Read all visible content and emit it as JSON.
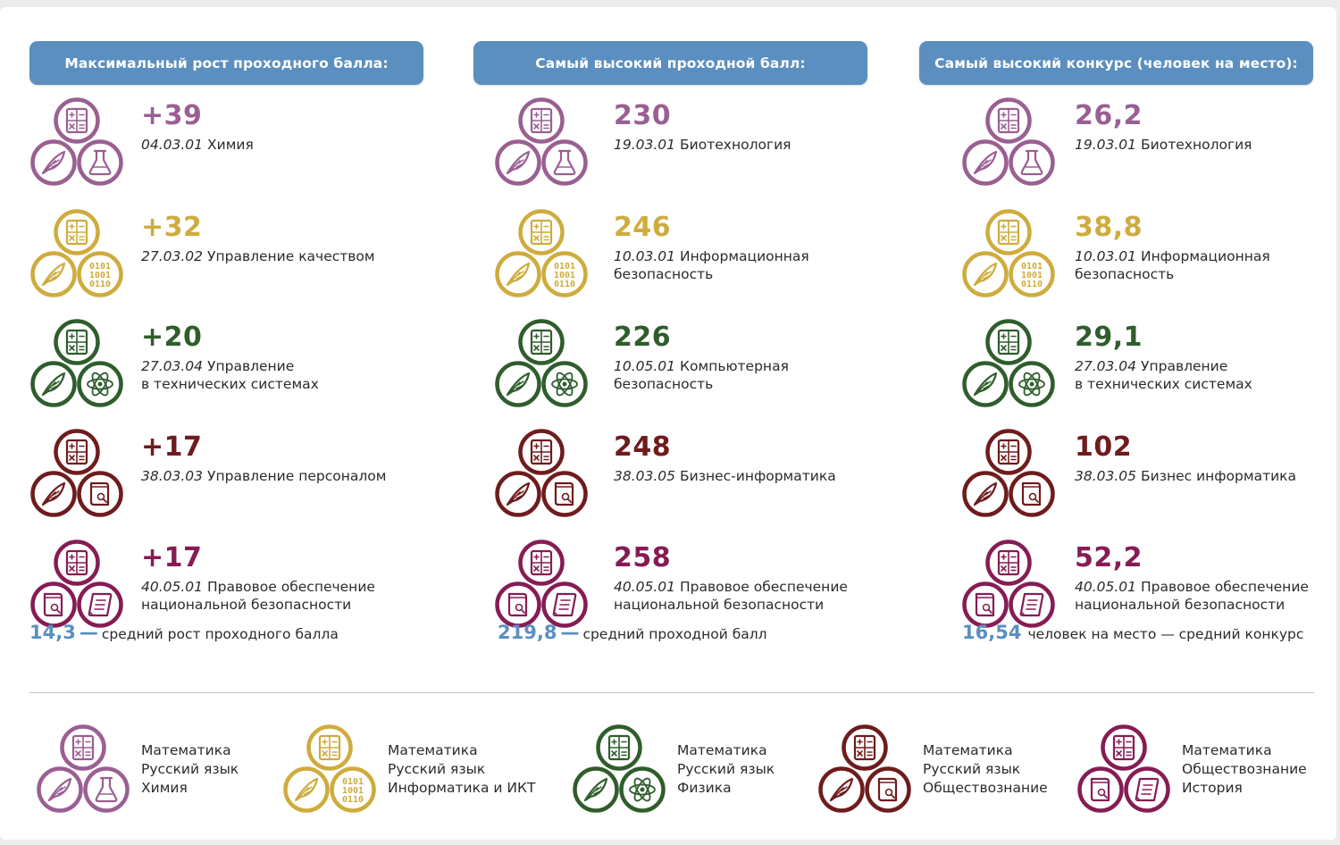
{
  "colors": {
    "header_bg": "#5b8fbf",
    "accent": "#5b8fbf",
    "chem": "#9a5f93",
    "it": "#ceac3d",
    "phys": "#2f5d2c",
    "soc": "#6e1c1d",
    "law": "#861c54"
  },
  "columns": [
    {
      "header": "Максимальный рост проходного балла:",
      "items": [
        {
          "value": "+39",
          "code": "04.03.01",
          "name": "Химия",
          "color": "chem",
          "icons": [
            "formula-icon",
            "quill-icon",
            "flask-icon"
          ]
        },
        {
          "value": "+32",
          "code": "27.03.02",
          "name": "Управление качеством",
          "color": "it",
          "icons": [
            "formula-icon",
            "quill-icon",
            "binary-icon"
          ]
        },
        {
          "value": "+20",
          "code": "27.03.04",
          "name": "Управление\nв технических системах",
          "color": "phys",
          "icons": [
            "formula-icon",
            "quill-icon",
            "atom-icon"
          ]
        },
        {
          "value": "+17",
          "code": "38.03.03",
          "name": "Управление персоналом",
          "color": "soc",
          "icons": [
            "formula-icon",
            "quill-icon",
            "book-search-icon"
          ]
        },
        {
          "value": "+17",
          "code": "40.05.01",
          "name": "Правовое обеспечение\nнациональной безопасности",
          "color": "law",
          "icons": [
            "formula-icon",
            "book-search-icon",
            "scroll-icon"
          ]
        }
      ],
      "avg": {
        "num": "14,3",
        "dash": "—",
        "label": "средний рост проходного балла"
      }
    },
    {
      "header": "Самый высокий проходной балл:",
      "items": [
        {
          "value": "230",
          "code": "19.03.01",
          "name": "Биотехнология",
          "color": "chem",
          "icons": [
            "formula-icon",
            "quill-icon",
            "flask-icon"
          ]
        },
        {
          "value": "246",
          "code": "10.03.01",
          "name": "Информационная\nбезопасность",
          "color": "it",
          "icons": [
            "formula-icon",
            "quill-icon",
            "binary-icon"
          ]
        },
        {
          "value": "226",
          "code": "10.05.01",
          "name": "Компьютерная\nбезопасность",
          "color": "phys",
          "icons": [
            "formula-icon",
            "quill-icon",
            "atom-icon"
          ]
        },
        {
          "value": "248",
          "code": "38.03.05",
          "name": "Бизнес-информатика",
          "color": "soc",
          "icons": [
            "formula-icon",
            "quill-icon",
            "book-search-icon"
          ]
        },
        {
          "value": "258",
          "code": "40.05.01",
          "name": "Правовое обеспечение\nнациональной безопасности",
          "color": "law",
          "icons": [
            "formula-icon",
            "book-search-icon",
            "scroll-icon"
          ]
        }
      ],
      "avg": {
        "num": "219,8",
        "dash": "—",
        "label": "средний проходной балл"
      }
    },
    {
      "header": "Самый высокий конкурс (человек на место):",
      "items": [
        {
          "value": "26,2",
          "code": "19.03.01",
          "name": "Биотехнология",
          "color": "chem",
          "icons": [
            "formula-icon",
            "quill-icon",
            "flask-icon"
          ]
        },
        {
          "value": "38,8",
          "code": "10.03.01",
          "name": "Информационная\nбезопасность",
          "color": "it",
          "icons": [
            "formula-icon",
            "quill-icon",
            "binary-icon"
          ]
        },
        {
          "value": "29,1",
          "code": "27.03.04",
          "name": "Управление\nв технических системах",
          "color": "phys",
          "icons": [
            "formula-icon",
            "quill-icon",
            "atom-icon"
          ]
        },
        {
          "value": "102",
          "code": "38.03.05",
          "name": "Бизнес информатика",
          "color": "soc",
          "icons": [
            "formula-icon",
            "quill-icon",
            "book-search-icon"
          ]
        },
        {
          "value": "52,2",
          "code": "40.05.01",
          "name": "Правовое обеспечение\nнациональной безопасности",
          "color": "law",
          "icons": [
            "formula-icon",
            "book-search-icon",
            "scroll-icon"
          ]
        }
      ],
      "avg": {
        "num": "16,54",
        "dash": "",
        "label": "человек на место — средний конкурс"
      }
    }
  ],
  "legend": [
    {
      "color": "chem",
      "icons": [
        "formula-icon",
        "quill-icon",
        "flask-icon"
      ],
      "subjects": [
        "Математика",
        "Русский язык",
        "Химия"
      ]
    },
    {
      "color": "it",
      "icons": [
        "formula-icon",
        "quill-icon",
        "binary-icon"
      ],
      "subjects": [
        "Математика",
        "Русский язык",
        "Информатика и ИКТ"
      ]
    },
    {
      "color": "phys",
      "icons": [
        "formula-icon",
        "quill-icon",
        "atom-icon"
      ],
      "subjects": [
        "Математика",
        "Русский язык",
        "Физика"
      ]
    },
    {
      "color": "soc",
      "icons": [
        "formula-icon",
        "quill-icon",
        "book-search-icon"
      ],
      "subjects": [
        "Математика",
        "Русский язык",
        "Обществознание"
      ]
    },
    {
      "color": "law",
      "icons": [
        "formula-icon",
        "book-search-icon",
        "scroll-icon"
      ],
      "subjects": [
        "Математика",
        "Обществознание",
        "История"
      ]
    }
  ],
  "binary_glyph": [
    "0101",
    "1001",
    "0110"
  ]
}
